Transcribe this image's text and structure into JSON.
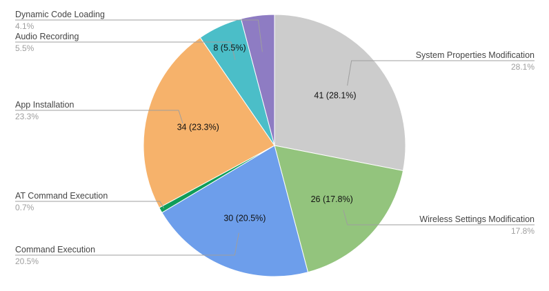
{
  "chart_data": {
    "type": "pie",
    "title": "",
    "legend": "none",
    "slices": [
      {
        "label": "System Properties Modification",
        "value": 41,
        "percent_label": "28.1%",
        "inner_label": "41 (28.1%)",
        "color": "#cccccc"
      },
      {
        "label": "Wireless Settings Modification",
        "value": 26,
        "percent_label": "17.8%",
        "inner_label": "26 (17.8%)",
        "color": "#93c47d"
      },
      {
        "label": "Command Execution",
        "value": 30,
        "percent_label": "20.5%",
        "inner_label": "30 (20.5%)",
        "color": "#6d9eeb"
      },
      {
        "label": "AT Command Execution",
        "value": 1,
        "percent_label": "0.7%",
        "inner_label": "",
        "color": "#109d59"
      },
      {
        "label": "App Installation",
        "value": 34,
        "percent_label": "23.3%",
        "inner_label": "34 (23.3%)",
        "color": "#f6b26b"
      },
      {
        "label": "Audio Recording",
        "value": 8,
        "percent_label": "5.5%",
        "inner_label": "8 (5.5%)",
        "color": "#4bbec8"
      },
      {
        "label": "Dynamic Code Loading",
        "value": 6,
        "percent_label": "4.1%",
        "inner_label": "",
        "color": "#8e7cc3"
      }
    ]
  }
}
